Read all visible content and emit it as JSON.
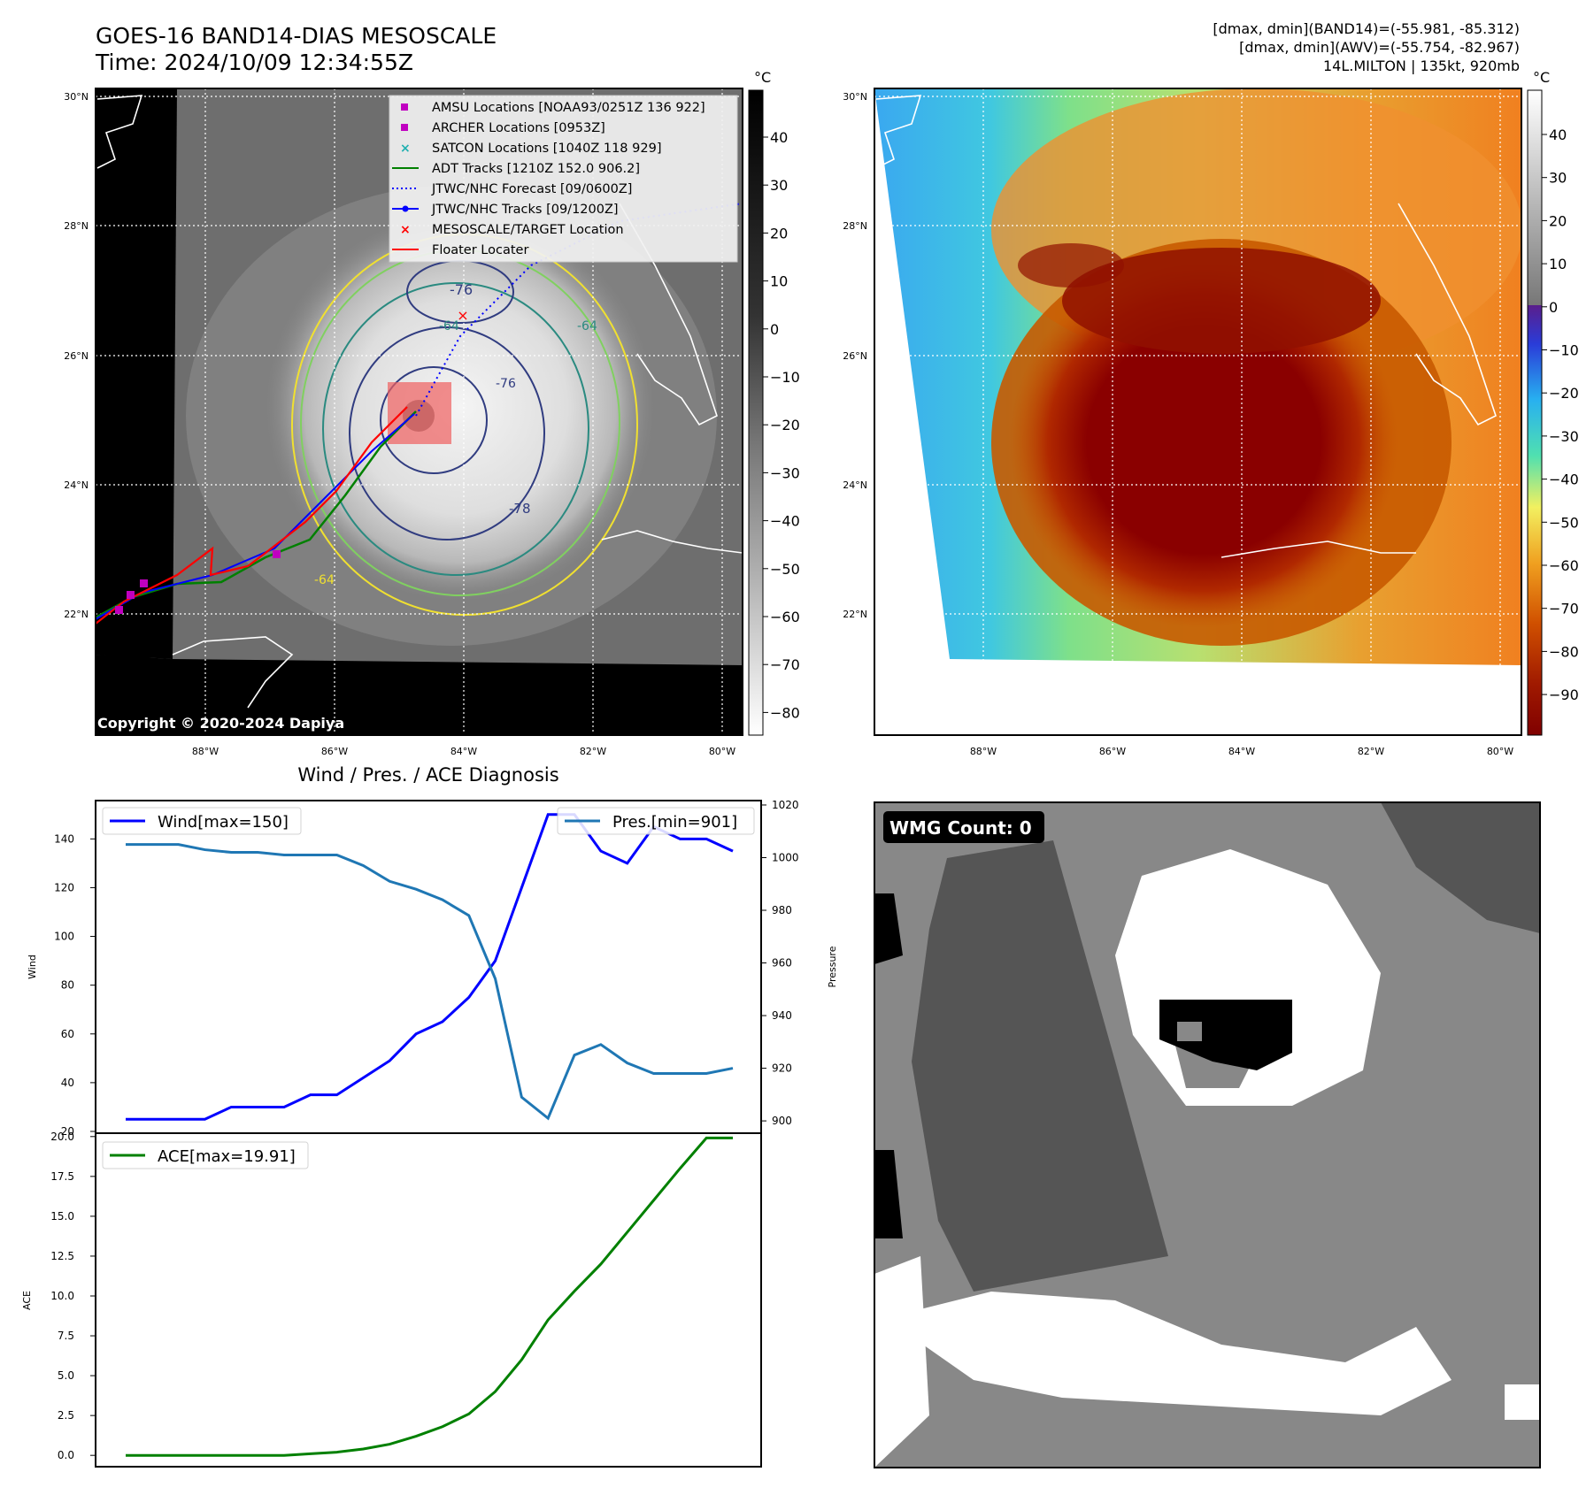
{
  "header": {
    "title_line1": "GOES-16 BAND14-DIAS MESOSCALE",
    "title_line2": "Time: 2024/10/09 12:34:55Z",
    "meta_line1": "[dmax, dmin](BAND14)=(-55.981, -85.312)",
    "meta_line2": "[dmax, dmin](AWV)=(-55.754, -82.967)",
    "meta_line3": "14L.MILTON | 135kt, 920mb"
  },
  "map_ir": {
    "copyright": "Copyright © 2020-2024 Dapiya",
    "lat_labels": [
      "30°N",
      "28°N",
      "26°N",
      "24°N",
      "22°N"
    ],
    "lon_labels": [
      "88°W",
      "86°W",
      "84°W",
      "82°W",
      "80°W"
    ],
    "contour_labels": [
      "-76",
      "-64",
      "-64",
      "-76",
      "-78",
      "-76",
      "-64"
    ],
    "colorbar": {
      "unit": "°C",
      "ticks": [
        "40",
        "30",
        "20",
        "10",
        "0",
        "−10",
        "−20",
        "−30",
        "−40",
        "−50",
        "−60",
        "−70",
        "−80"
      ]
    },
    "legend": [
      {
        "label": "AMSU Locations [NOAA93/0251Z 136 922]",
        "marker": "square",
        "color": "#c000c0"
      },
      {
        "label": "ARCHER Locations [0953Z]",
        "marker": "square",
        "color": "#c000c0"
      },
      {
        "label": "SATCON Locations [1040Z 118 929]",
        "marker": "x",
        "color": "#20b0b0"
      },
      {
        "label": "ADT Tracks [1210Z 152.0 906.2]",
        "marker": "line",
        "color": "#008000"
      },
      {
        "label": "JTWC/NHC Forecast [09/0600Z]",
        "marker": "dotted",
        "color": "#0000ff"
      },
      {
        "label": "JTWC/NHC Tracks [09/1200Z]",
        "marker": "line-dot",
        "color": "#0000ff"
      },
      {
        "label": "MESOSCALE/TARGET Location",
        "marker": "x",
        "color": "#ff0000"
      },
      {
        "label": "Floater Locater",
        "marker": "line",
        "color": "#ff0000"
      }
    ]
  },
  "map_awv": {
    "lat_labels": [
      "30°N",
      "28°N",
      "26°N",
      "24°N",
      "22°N"
    ],
    "lon_labels": [
      "88°W",
      "86°W",
      "84°W",
      "82°W",
      "80°W"
    ],
    "colorbar": {
      "unit": "°C",
      "ticks": [
        "40",
        "30",
        "20",
        "10",
        "0",
        "−10",
        "−20",
        "−30",
        "−40",
        "−50",
        "−60",
        "−70",
        "−80",
        "−90"
      ]
    }
  },
  "chart_data": [
    {
      "type": "line",
      "title": "Wind / Pres. / ACE Diagnosis",
      "ylabel": "Wind",
      "ylim": [
        20,
        155
      ],
      "yticks": [
        20,
        40,
        60,
        80,
        100,
        120,
        140
      ],
      "x": [
        0,
        1,
        2,
        3,
        4,
        5,
        6,
        7,
        8,
        9,
        10,
        11,
        12,
        13,
        14,
        15,
        16,
        17,
        18,
        19,
        20,
        21,
        22,
        23
      ],
      "series": [
        {
          "name": "Wind[max=150]",
          "color": "#0000ff",
          "values": [
            25,
            25,
            25,
            25,
            30,
            30,
            30,
            35,
            35,
            42,
            49,
            60,
            65,
            75,
            90,
            120,
            150,
            150,
            135,
            130,
            145,
            140,
            140,
            135
          ]
        }
      ],
      "secondary": {
        "ylabel": "Pressure",
        "ylim": [
          896,
          1021
        ],
        "yticks": [
          900,
          920,
          940,
          960,
          980,
          1000,
          1020
        ],
        "series": [
          {
            "name": "Pres.[min=901]",
            "color": "#1f77b4",
            "values": [
              1005,
              1005,
              1005,
              1003,
              1002,
              1002,
              1001,
              1001,
              1001,
              997,
              991,
              988,
              984,
              978,
              954,
              909,
              901,
              925,
              929,
              922,
              918,
              918,
              918,
              920
            ]
          }
        ]
      }
    },
    {
      "type": "line",
      "title": "",
      "ylabel": "ACE",
      "ylim": [
        -0.6,
        20.1
      ],
      "yticks": [
        "0.0",
        "2.5",
        "5.0",
        "7.5",
        "10.0",
        "12.5",
        "15.0",
        "17.5",
        "20.0"
      ],
      "x": [
        0,
        1,
        2,
        3,
        4,
        5,
        6,
        7,
        8,
        9,
        10,
        11,
        12,
        13,
        14,
        15,
        16,
        17,
        18,
        19,
        20,
        21,
        22,
        23
      ],
      "series": [
        {
          "name": "ACE[max=19.91]",
          "color": "#008000",
          "values": [
            0,
            0,
            0,
            0,
            0,
            0,
            0,
            0.1,
            0.2,
            0.4,
            0.7,
            1.2,
            1.8,
            2.6,
            4,
            6,
            8.5,
            10.3,
            12,
            14,
            16,
            18,
            19.91,
            19.91
          ]
        }
      ]
    }
  ],
  "wmg": {
    "label": "WMG Count: 0"
  }
}
